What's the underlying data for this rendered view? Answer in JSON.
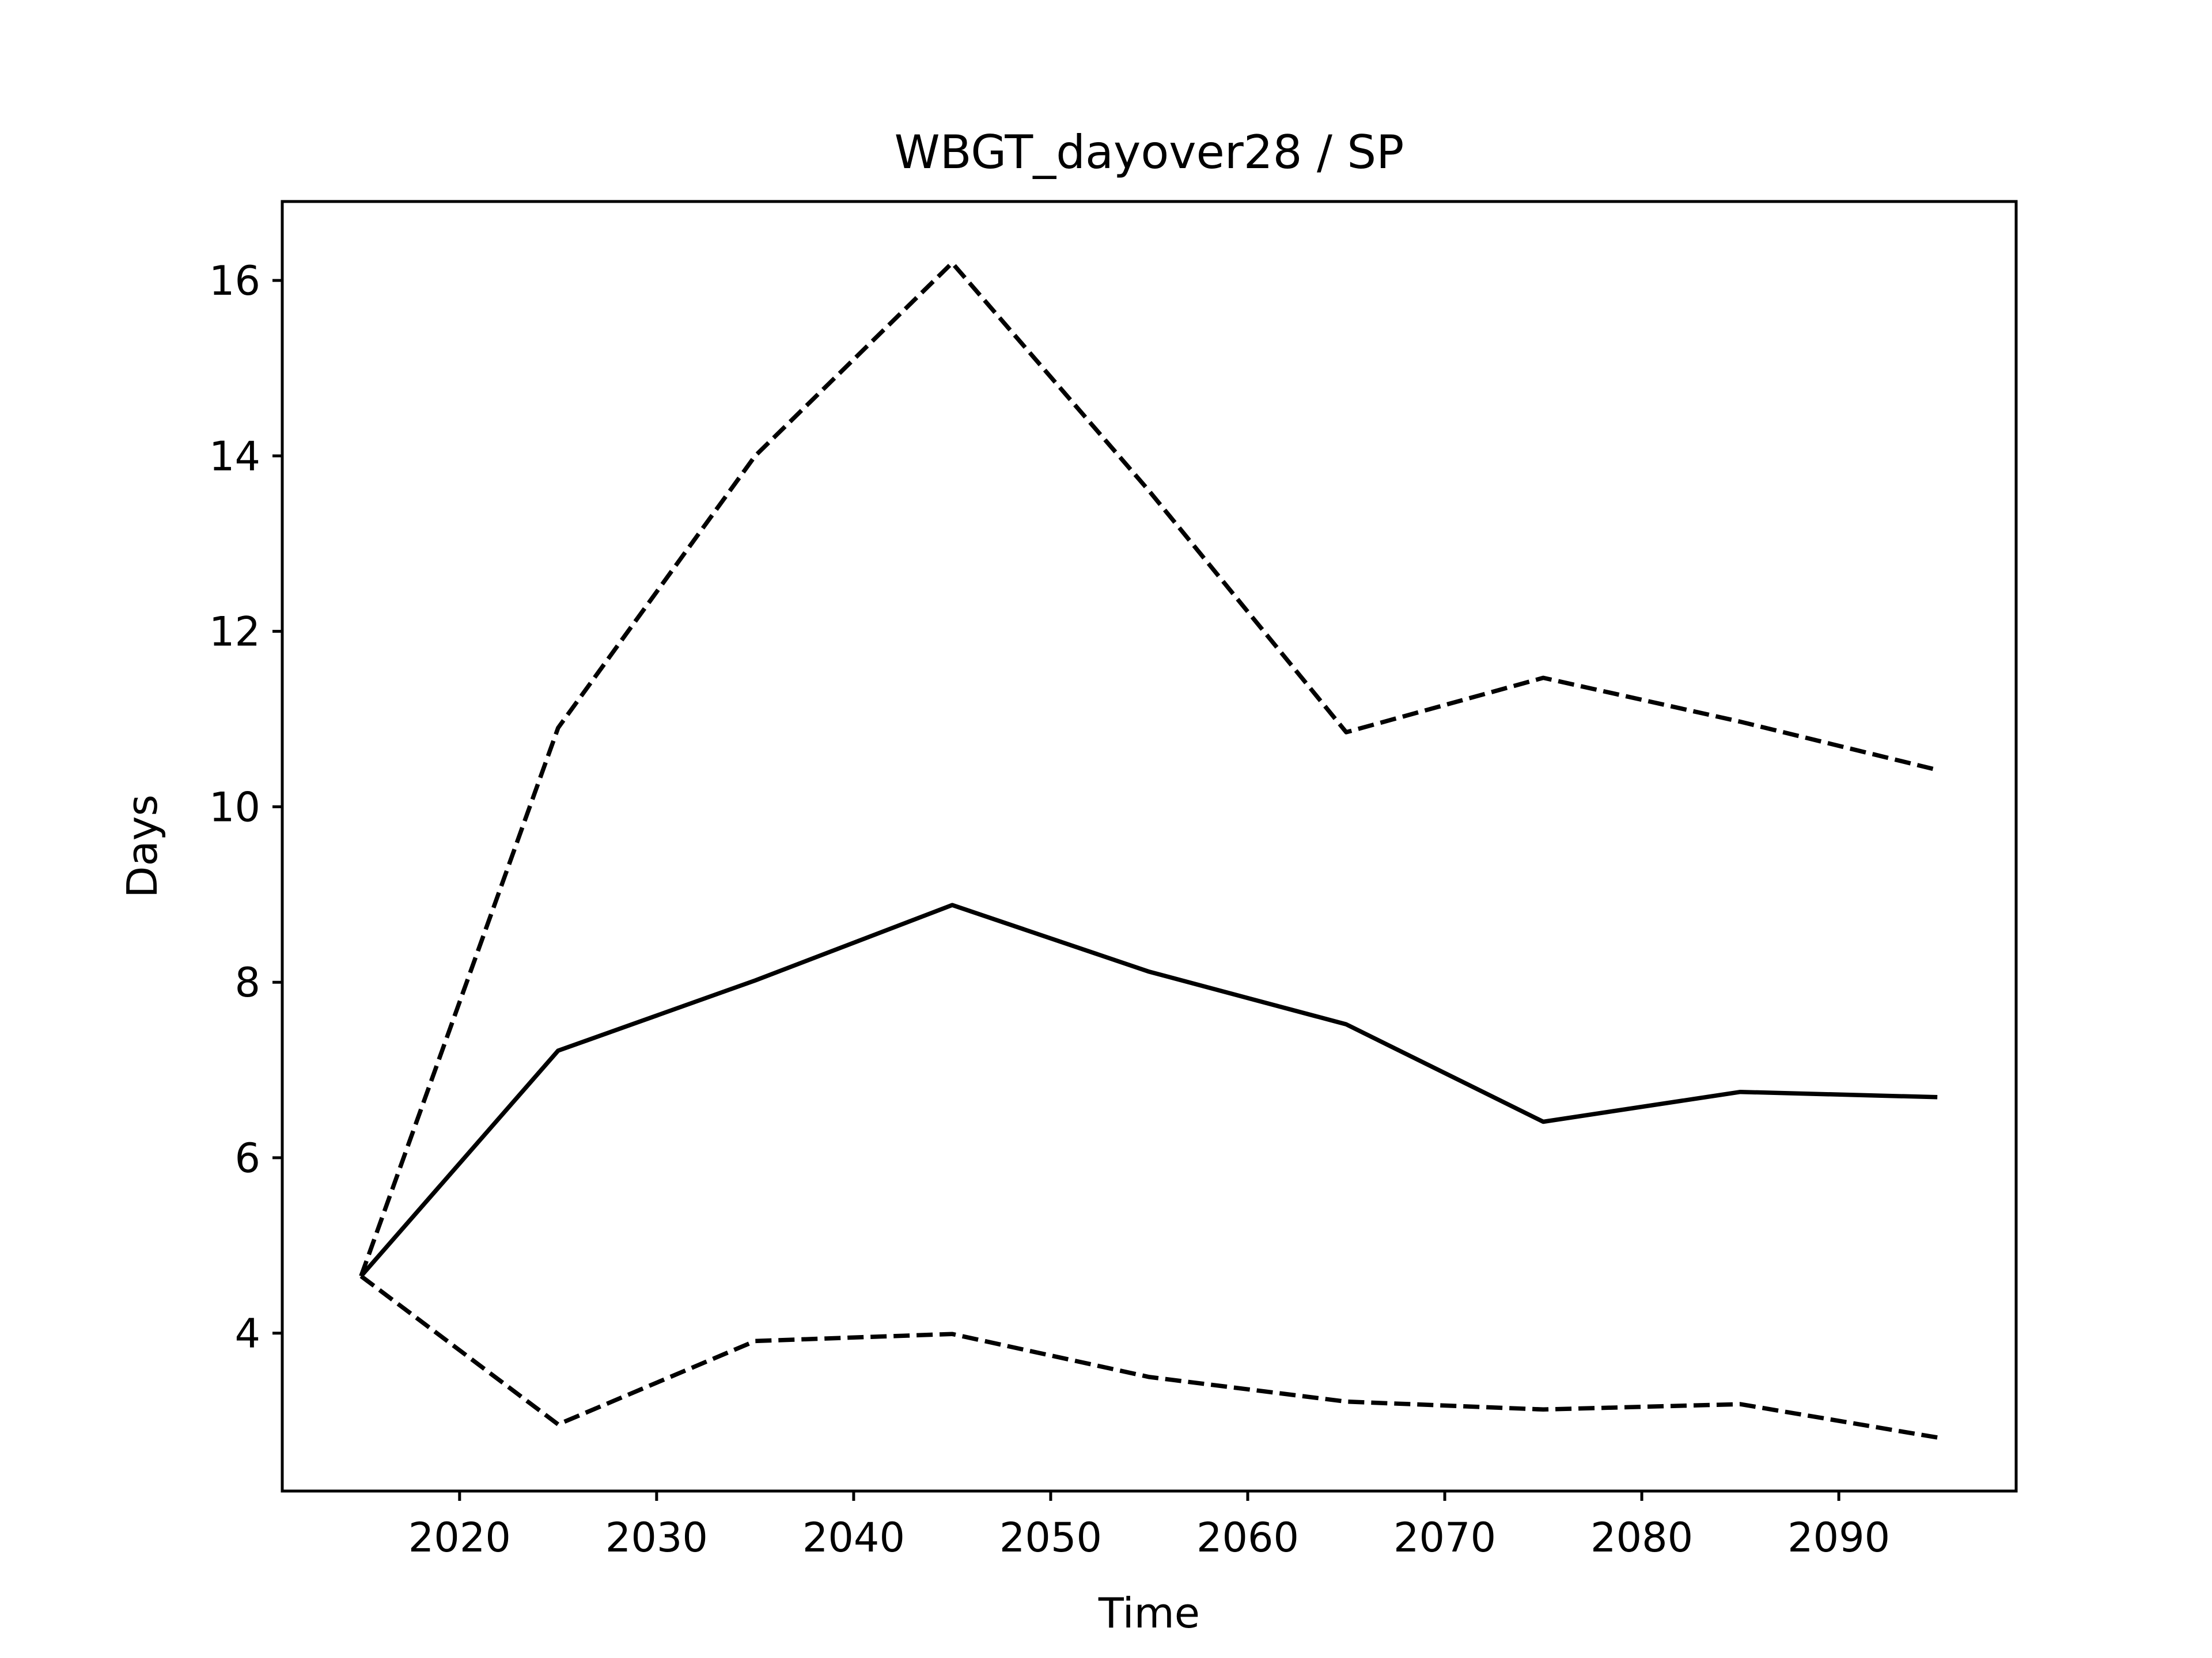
{
  "chart_data": {
    "type": "line",
    "title": "WBGT_dayover28 / SP",
    "xlabel": "Time",
    "ylabel": "Days",
    "xlim": [
      2011,
      2099
    ],
    "ylim": [
      2.2,
      16.9
    ],
    "xticks": [
      2020,
      2030,
      2040,
      2050,
      2060,
      2070,
      2080,
      2090
    ],
    "yticks": [
      4,
      6,
      8,
      10,
      12,
      14,
      16
    ],
    "grid": false,
    "legend": "none",
    "x": [
      2015,
      2025,
      2035,
      2045,
      2055,
      2065,
      2075,
      2085,
      2095
    ],
    "series": [
      {
        "style": "solid",
        "color": "#000000",
        "values": [
          4.65,
          7.22,
          8.02,
          8.88,
          8.12,
          7.52,
          6.41,
          6.75,
          6.69
        ]
      },
      {
        "style": "dashed",
        "color": "#000000",
        "values": [
          4.65,
          10.9,
          14.0,
          16.2,
          13.6,
          10.85,
          11.47,
          10.97,
          10.42
        ]
      },
      {
        "style": "dashed",
        "color": "#000000",
        "values": [
          4.65,
          2.96,
          3.91,
          3.99,
          3.5,
          3.22,
          3.13,
          3.19,
          2.81
        ]
      }
    ]
  }
}
